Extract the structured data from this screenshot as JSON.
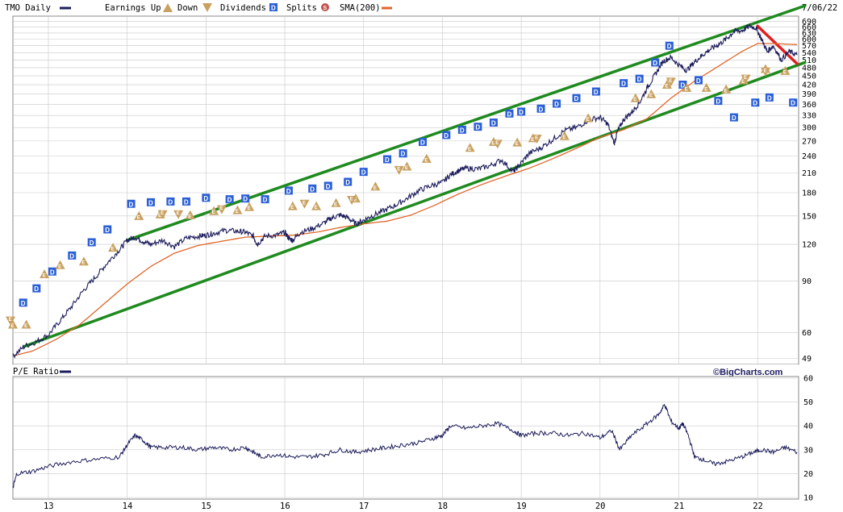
{
  "header": {
    "symbol_label": "TMO Daily",
    "earnings_up_label": "Earnings Up",
    "down_label": "Down",
    "dividends_label": "Dividends",
    "splits_label": "Splits",
    "sma_label": "SMA(200)",
    "date": "7/06/22"
  },
  "lower_panel": {
    "label": "P/E Ratio",
    "brand": "©BigCharts.com"
  },
  "colors": {
    "price": "#1c1c5c",
    "sma": "#e0662a",
    "channel": "#1f8a1f",
    "trend_down": "#e02020",
    "dividend": "#2a5fd6",
    "earnings": "#c8a060",
    "split": "#c0504d",
    "grid": "#c8c8c8"
  },
  "chart_data": [
    {
      "type": "line",
      "title": "TMO Daily",
      "y_scale": "log",
      "ylim": [
        48,
        710
      ],
      "xlim": [
        2012.55,
        2022.52
      ],
      "y_ticks": [
        49,
        60,
        90,
        120,
        150,
        180,
        210,
        240,
        270,
        300,
        330,
        360,
        390,
        420,
        450,
        480,
        510,
        540,
        570,
        600,
        630,
        660,
        690
      ],
      "x_ticks": [
        {
          "x": 2013,
          "label": "13"
        },
        {
          "x": 2014,
          "label": "14"
        },
        {
          "x": 2015,
          "label": "15"
        },
        {
          "x": 2016,
          "label": "16"
        },
        {
          "x": 2017,
          "label": "17"
        },
        {
          "x": 2018,
          "label": "18"
        },
        {
          "x": 2019,
          "label": "19"
        },
        {
          "x": 2020,
          "label": "20"
        },
        {
          "x": 2021,
          "label": "21"
        },
        {
          "x": 2022,
          "label": "22"
        }
      ],
      "series": [
        {
          "name": "TMO Daily",
          "x": [
            2012.55,
            2012.7,
            2012.85,
            2013.0,
            2013.15,
            2013.3,
            2013.45,
            2013.6,
            2013.75,
            2013.9,
            2014.0,
            2014.1,
            2014.2,
            2014.3,
            2014.45,
            2014.6,
            2014.75,
            2014.9,
            2015.0,
            2015.1,
            2015.25,
            2015.4,
            2015.5,
            2015.6,
            2015.65,
            2015.75,
            2015.9,
            2016.0,
            2016.05,
            2016.1,
            2016.2,
            2016.35,
            2016.5,
            2016.6,
            2016.7,
            2016.8,
            2016.9,
            2017.0,
            2017.1,
            2017.25,
            2017.4,
            2017.55,
            2017.7,
            2017.85,
            2018.0,
            2018.1,
            2018.2,
            2018.3,
            2018.45,
            2018.6,
            2018.75,
            2018.9,
            2018.98,
            2019.1,
            2019.25,
            2019.4,
            2019.55,
            2019.7,
            2019.85,
            2020.0,
            2020.1,
            2020.18,
            2020.22,
            2020.3,
            2020.4,
            2020.5,
            2020.6,
            2020.7,
            2020.8,
            2020.9,
            2021.0,
            2021.1,
            2021.2,
            2021.3,
            2021.4,
            2021.5,
            2021.6,
            2021.7,
            2021.8,
            2021.9,
            2021.98,
            2022.05,
            2022.12,
            2022.2,
            2022.3,
            2022.4,
            2022.5
          ],
          "values": [
            50,
            54,
            56,
            59,
            66,
            74,
            84,
            93,
            104,
            115,
            124,
            127,
            123,
            120,
            124,
            118,
            126,
            128,
            129,
            131,
            134,
            133,
            132,
            128,
            120,
            128,
            129,
            132,
            126,
            124,
            132,
            136,
            142,
            148,
            151,
            148,
            141,
            145,
            150,
            156,
            163,
            172,
            183,
            190,
            195,
            207,
            214,
            218,
            217,
            222,
            233,
            212,
            224,
            245,
            256,
            273,
            293,
            300,
            318,
            325,
            308,
            265,
            290,
            320,
            338,
            365,
            410,
            455,
            505,
            520,
            490,
            470,
            502,
            530,
            555,
            575,
            600,
            638,
            642,
            665,
            655,
            600,
            545,
            570,
            510,
            545,
            530
          ]
        },
        {
          "name": "SMA(200)",
          "x": [
            2012.55,
            2012.8,
            2013.1,
            2013.4,
            2013.7,
            2014.0,
            2014.3,
            2014.6,
            2014.9,
            2015.2,
            2015.5,
            2015.8,
            2016.1,
            2016.4,
            2016.7,
            2017.0,
            2017.3,
            2017.6,
            2017.9,
            2018.2,
            2018.5,
            2018.8,
            2019.1,
            2019.4,
            2019.7,
            2020.0,
            2020.3,
            2020.6,
            2020.9,
            2021.2,
            2021.5,
            2021.8,
            2022.0,
            2022.2,
            2022.5
          ],
          "values": [
            50,
            52,
            57,
            64,
            75,
            88,
            101,
            112,
            119,
            123,
            127,
            128,
            129,
            132,
            137,
            141,
            144,
            151,
            163,
            178,
            192,
            205,
            218,
            235,
            255,
            278,
            295,
            322,
            378,
            432,
            485,
            545,
            580,
            580,
            575
          ]
        }
      ],
      "channel_lines": [
        {
          "name": "upper",
          "x": [
            2014.0,
            2022.6
          ],
          "y": [
            124,
            780
          ]
        },
        {
          "name": "lower",
          "x": [
            2012.7,
            2022.6
          ],
          "y": [
            54,
            500
          ]
        },
        {
          "name": "downtrend",
          "x": [
            2022.0,
            2022.5
          ],
          "y": [
            665,
            495
          ]
        }
      ],
      "event_markers": {
        "dividends": [
          [
            2012.68,
            76
          ],
          [
            2012.85,
            85
          ],
          [
            2013.05,
            97
          ],
          [
            2013.3,
            110
          ],
          [
            2013.55,
            122
          ],
          [
            2013.75,
            135
          ],
          [
            2014.05,
            165
          ],
          [
            2014.3,
            167
          ],
          [
            2014.55,
            168
          ],
          [
            2014.75,
            168
          ],
          [
            2015.0,
            173
          ],
          [
            2015.3,
            171
          ],
          [
            2015.5,
            172
          ],
          [
            2015.75,
            171
          ],
          [
            2016.05,
            183
          ],
          [
            2016.35,
            186
          ],
          [
            2016.55,
            190
          ],
          [
            2016.8,
            196
          ],
          [
            2017.0,
            212
          ],
          [
            2017.3,
            234
          ],
          [
            2017.5,
            245
          ],
          [
            2017.75,
            268
          ],
          [
            2018.05,
            283
          ],
          [
            2018.25,
            295
          ],
          [
            2018.45,
            302
          ],
          [
            2018.65,
            312
          ],
          [
            2018.85,
            335
          ],
          [
            2019.0,
            340
          ],
          [
            2019.25,
            348
          ],
          [
            2019.45,
            362
          ],
          [
            2019.7,
            378
          ],
          [
            2019.95,
            398
          ],
          [
            2020.3,
            425
          ],
          [
            2020.5,
            440
          ],
          [
            2020.7,
            500
          ],
          [
            2020.88,
            570
          ],
          [
            2021.05,
            420
          ],
          [
            2021.25,
            435
          ],
          [
            2021.5,
            370
          ],
          [
            2021.7,
            325
          ],
          [
            2021.97,
            365
          ],
          [
            2022.15,
            380
          ],
          [
            2022.45,
            365
          ]
        ],
        "earnings_up": [
          [
            2012.55,
            64
          ],
          [
            2012.72,
            64
          ],
          [
            2012.95,
            95
          ],
          [
            2013.15,
            102
          ],
          [
            2013.45,
            105
          ],
          [
            2013.82,
            117
          ],
          [
            2014.15,
            150
          ],
          [
            2014.42,
            152
          ],
          [
            2014.8,
            151
          ],
          [
            2015.1,
            156
          ],
          [
            2015.4,
            157
          ],
          [
            2015.55,
            161
          ],
          [
            2016.1,
            162
          ],
          [
            2016.4,
            162
          ],
          [
            2016.65,
            166
          ],
          [
            2016.9,
            172
          ],
          [
            2017.15,
            189
          ],
          [
            2017.55,
            221
          ],
          [
            2017.8,
            235
          ],
          [
            2018.35,
            256
          ],
          [
            2018.65,
            268
          ],
          [
            2018.95,
            267
          ],
          [
            2019.15,
            276
          ],
          [
            2019.55,
            281
          ],
          [
            2019.85,
            323
          ],
          [
            2020.45,
            378
          ],
          [
            2020.65,
            390
          ],
          [
            2020.85,
            420
          ],
          [
            2021.1,
            410
          ],
          [
            2021.35,
            410
          ],
          [
            2021.6,
            405
          ],
          [
            2021.82,
            435
          ],
          [
            2022.1,
            475
          ],
          [
            2022.35,
            468
          ]
        ],
        "earnings_down": [
          [
            2012.52,
            66
          ],
          [
            2014.45,
            152
          ],
          [
            2014.65,
            152
          ],
          [
            2015.2,
            158
          ],
          [
            2016.25,
            165
          ],
          [
            2016.85,
            170
          ],
          [
            2017.45,
            215
          ],
          [
            2018.7,
            264
          ],
          [
            2019.2,
            275
          ],
          [
            2020.9,
            430
          ],
          [
            2021.85,
            440
          ],
          [
            2022.1,
            465
          ]
        ]
      }
    },
    {
      "type": "line",
      "title": "P/E Ratio",
      "ylim": [
        10,
        60
      ],
      "y_ticks": [
        10,
        20,
        30,
        40,
        50,
        60
      ],
      "series": [
        {
          "name": "P/E Ratio",
          "x": [
            2012.55,
            2012.6,
            2012.8,
            2013.0,
            2013.3,
            2013.6,
            2013.9,
            2014.0,
            2014.1,
            2014.2,
            2014.3,
            2014.5,
            2014.7,
            2014.9,
            2015.1,
            2015.3,
            2015.5,
            2015.6,
            2015.7,
            2015.9,
            2016.1,
            2016.3,
            2016.5,
            2016.7,
            2016.9,
            2017.1,
            2017.3,
            2017.5,
            2017.7,
            2017.9,
            2018.0,
            2018.1,
            2018.3,
            2018.5,
            2018.7,
            2018.9,
            2019.0,
            2019.2,
            2019.4,
            2019.6,
            2019.8,
            2020.0,
            2020.15,
            2020.25,
            2020.4,
            2020.6,
            2020.75,
            2020.82,
            2020.9,
            2021.0,
            2021.05,
            2021.12,
            2021.2,
            2021.3,
            2021.45,
            2021.6,
            2021.8,
            2021.95,
            2022.05,
            2022.2,
            2022.35,
            2022.5
          ],
          "values": [
            14,
            20,
            21,
            23,
            25,
            26,
            27,
            32,
            36,
            34,
            31,
            31,
            31,
            30,
            31,
            30,
            31,
            29,
            27,
            28,
            27,
            27,
            28,
            30,
            29,
            30,
            31,
            32,
            33,
            35,
            36,
            40,
            39,
            40,
            41,
            38,
            36,
            37,
            37,
            36,
            37,
            35,
            38,
            30,
            36,
            41,
            45,
            49,
            42,
            39,
            41,
            36,
            27,
            26,
            24,
            25,
            27,
            29,
            30,
            29,
            31,
            29
          ]
        }
      ]
    }
  ]
}
